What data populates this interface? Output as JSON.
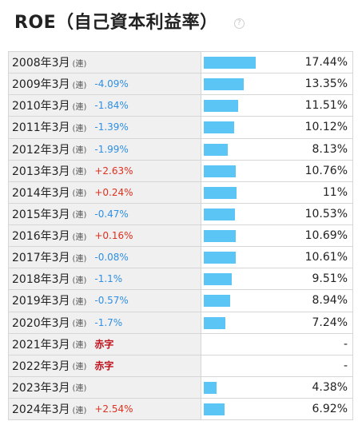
{
  "header": {
    "title": "ROE（自己資本利益率）",
    "help_icon": "question-circle-icon"
  },
  "colors": {
    "bar": "#5bc6f6",
    "increase": "#e0301e",
    "decrease": "#2f8fe4",
    "deficit": "#c0101a",
    "label_bg": "#f0f0f0"
  },
  "chart_data": {
    "type": "bar",
    "orientation": "horizontal",
    "unit": "%",
    "rows": [
      {
        "year": "2008年3月",
        "kind": "(連)",
        "change": "",
        "change_type": "none",
        "value": 17.44,
        "display": "17.44%"
      },
      {
        "year": "2009年3月",
        "kind": "(連)",
        "change": "-4.09%",
        "change_type": "decrease",
        "value": 13.35,
        "display": "13.35%"
      },
      {
        "year": "2010年3月",
        "kind": "(連)",
        "change": "-1.84%",
        "change_type": "decrease",
        "value": 11.51,
        "display": "11.51%"
      },
      {
        "year": "2011年3月",
        "kind": "(連)",
        "change": "-1.39%",
        "change_type": "decrease",
        "value": 10.12,
        "display": "10.12%"
      },
      {
        "year": "2012年3月",
        "kind": "(連)",
        "change": "-1.99%",
        "change_type": "decrease",
        "value": 8.13,
        "display": "8.13%"
      },
      {
        "year": "2013年3月",
        "kind": "(連)",
        "change": "+2.63%",
        "change_type": "increase",
        "value": 10.76,
        "display": "10.76%"
      },
      {
        "year": "2014年3月",
        "kind": "(連)",
        "change": "+0.24%",
        "change_type": "increase",
        "value": 11,
        "display": "11%"
      },
      {
        "year": "2015年3月",
        "kind": "(連)",
        "change": "-0.47%",
        "change_type": "decrease",
        "value": 10.53,
        "display": "10.53%"
      },
      {
        "year": "2016年3月",
        "kind": "(連)",
        "change": "+0.16%",
        "change_type": "increase",
        "value": 10.69,
        "display": "10.69%"
      },
      {
        "year": "2017年3月",
        "kind": "(連)",
        "change": "-0.08%",
        "change_type": "decrease",
        "value": 10.61,
        "display": "10.61%"
      },
      {
        "year": "2018年3月",
        "kind": "(連)",
        "change": "-1.1%",
        "change_type": "decrease",
        "value": 9.51,
        "display": "9.51%"
      },
      {
        "year": "2019年3月",
        "kind": "(連)",
        "change": "-0.57%",
        "change_type": "decrease",
        "value": 8.94,
        "display": "8.94%"
      },
      {
        "year": "2020年3月",
        "kind": "(連)",
        "change": "-1.7%",
        "change_type": "decrease",
        "value": 7.24,
        "display": "7.24%"
      },
      {
        "year": "2021年3月",
        "kind": "(連)",
        "change": "赤字",
        "change_type": "deficit",
        "value": null,
        "display": "-"
      },
      {
        "year": "2022年3月",
        "kind": "(連)",
        "change": "赤字",
        "change_type": "deficit",
        "value": null,
        "display": "-"
      },
      {
        "year": "2023年3月",
        "kind": "(連)",
        "change": "",
        "change_type": "none",
        "value": 4.38,
        "display": "4.38%"
      },
      {
        "year": "2024年3月",
        "kind": "(連)",
        "change": "+2.54%",
        "change_type": "increase",
        "value": 6.92,
        "display": "6.92%"
      }
    ]
  }
}
